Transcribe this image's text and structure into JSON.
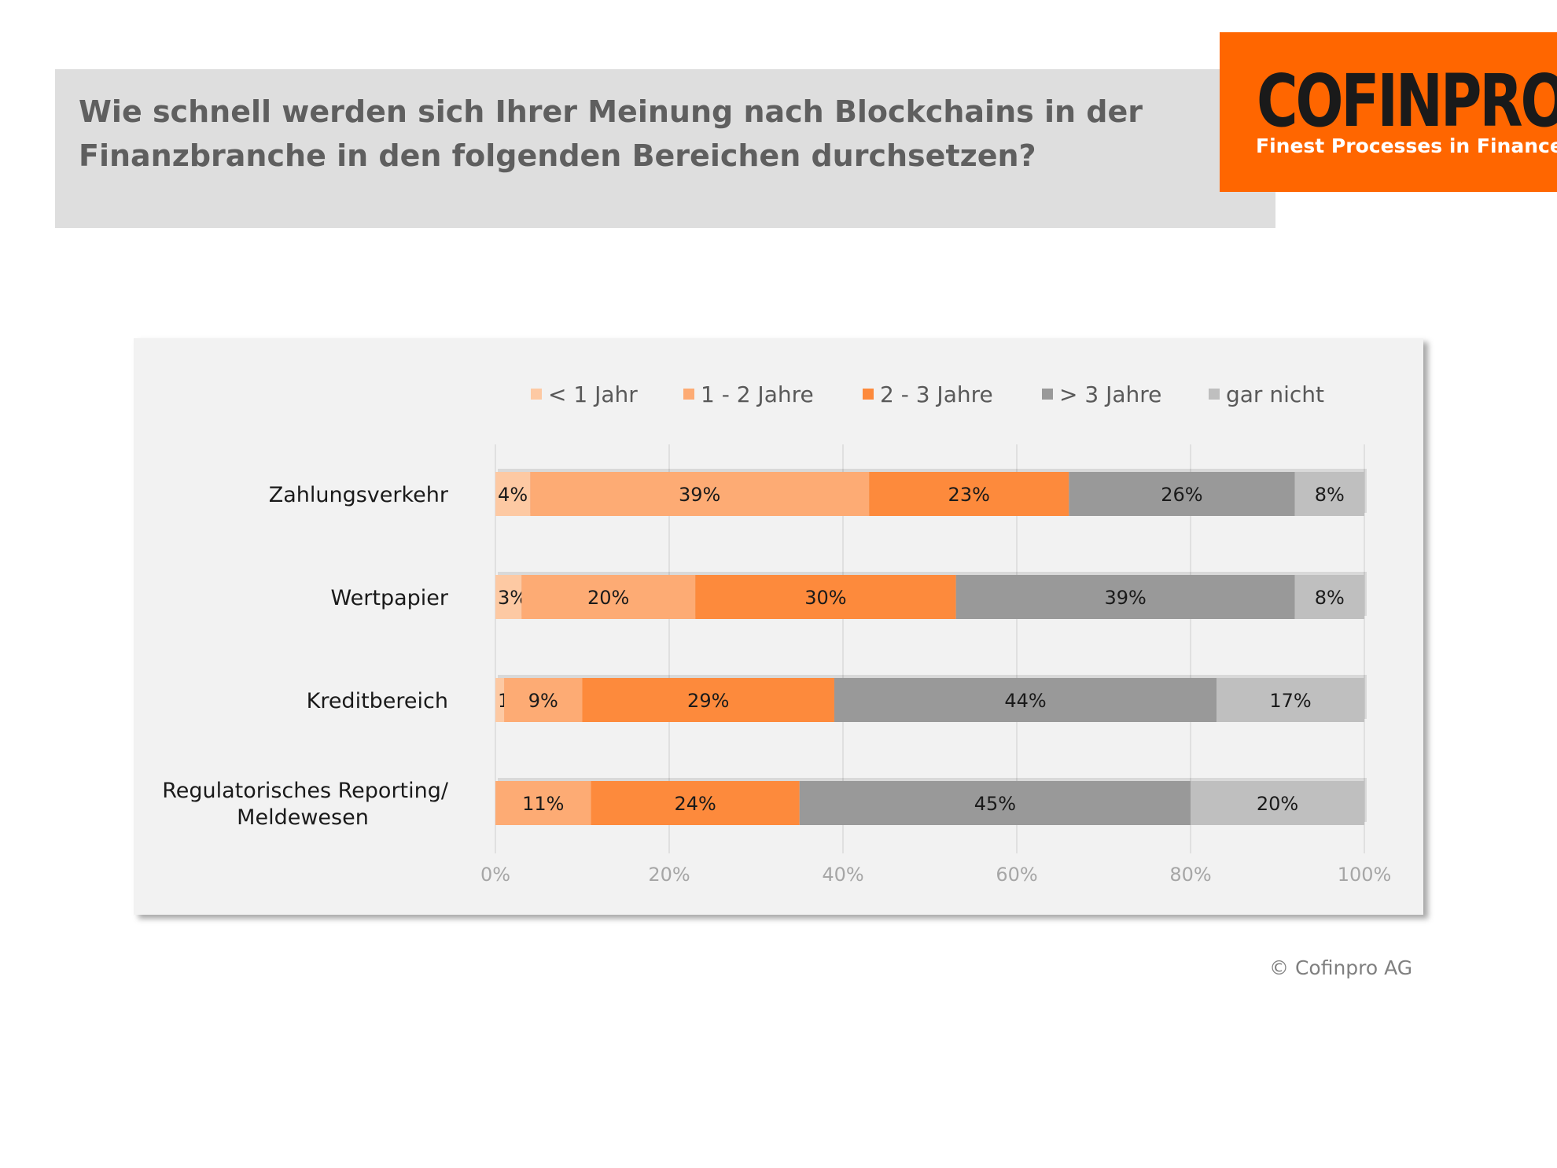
{
  "header": {
    "title_line1": "Wie schnell werden sich Ihrer Meinung nach Blockchains in der",
    "title_line2": "Finanzbranche in den folgenden Bereichen durchsetzen?"
  },
  "logo": {
    "wordmark": "COFINPRO",
    "tagline": "Finest Processes in Finance",
    "background": "#ff6600"
  },
  "footer": {
    "copyright": "© Cofinpro AG"
  },
  "chart_data": {
    "type": "bar",
    "orientation": "horizontal",
    "stacked": true,
    "title": "",
    "xlabel": "",
    "ylabel": "",
    "xlim": [
      0,
      100
    ],
    "x_ticks": [
      "0%",
      "20%",
      "40%",
      "60%",
      "80%",
      "100%"
    ],
    "grid": true,
    "legend_position": "top",
    "categories": [
      [
        "Zahlungsverkehr"
      ],
      [
        "Wertpapier"
      ],
      [
        "Kreditbereich"
      ],
      [
        "Regulatorisches Reporting/",
        "Meldewesen"
      ]
    ],
    "series": [
      {
        "name": "< 1 Jahr",
        "color": "#fdc9a3",
        "values": [
          4,
          3,
          1,
          0
        ]
      },
      {
        "name": "1 - 2 Jahre",
        "color": "#fdab74",
        "values": [
          39,
          20,
          9,
          11
        ]
      },
      {
        "name": "2 - 3 Jahre",
        "color": "#fd8a3c",
        "values": [
          23,
          30,
          29,
          24
        ]
      },
      {
        "name": "> 3 Jahre",
        "color": "#999999",
        "values": [
          26,
          39,
          44,
          45
        ]
      },
      {
        "name": "gar nicht",
        "color": "#bfbfbf",
        "values": [
          8,
          8,
          17,
          20
        ]
      }
    ]
  }
}
